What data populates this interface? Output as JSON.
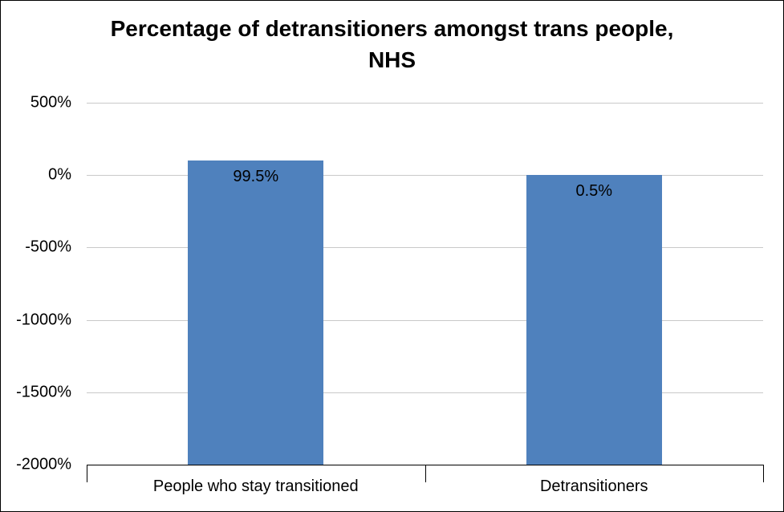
{
  "chart_data": {
    "type": "bar",
    "title": "Percentage of detransitioners amongst trans people, NHS",
    "categories": [
      "People who stay transitioned",
      "Detransitioners"
    ],
    "values": [
      99.5,
      0.5
    ],
    "data_labels": [
      "99.5%",
      "0.5%"
    ],
    "xlabel": "",
    "ylabel": "",
    "ylim": [
      -2000,
      500
    ],
    "yticks": [
      500,
      0,
      -500,
      -1000,
      -1500,
      -2000
    ],
    "ytick_labels": [
      "500%",
      "0%",
      "-500%",
      "-1000%",
      "-1500%",
      "-2000%"
    ],
    "bar_base": -2000,
    "grid": true,
    "legend": false,
    "bar_color": "#4F81BD",
    "gridline_color": "#C9C9C9",
    "axis_color": "#000000"
  }
}
